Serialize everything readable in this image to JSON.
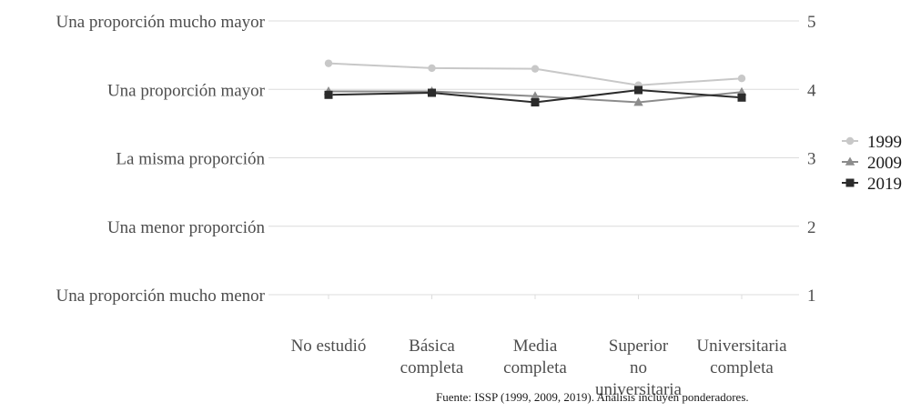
{
  "chart_data": {
    "type": "line",
    "title": "",
    "xlabel": "",
    "ylabel": "",
    "categories": [
      [
        "No estudió"
      ],
      [
        "Básica",
        "completa"
      ],
      [
        "Media",
        "completa"
      ],
      [
        "Superior",
        "no",
        "universitaria"
      ],
      [
        "Universitaria",
        "completa"
      ]
    ],
    "y_ticks": [
      1,
      2,
      3,
      4,
      5
    ],
    "y_tick_labels": [
      "Una proporción mucho menor",
      "Una menor proporción",
      "La misma proporción",
      "Una proporción mayor",
      "Una proporción mucho mayor"
    ],
    "ylim": [
      1,
      5
    ],
    "grid": true,
    "legend_position": "right",
    "series": [
      {
        "name": "1999",
        "color": "#c8c8c8",
        "marker": "circle",
        "values": [
          4.38,
          4.31,
          4.3,
          4.06,
          4.16
        ]
      },
      {
        "name": "2009",
        "color": "#8c8c8c",
        "marker": "triangle",
        "values": [
          3.97,
          3.97,
          3.9,
          3.81,
          3.96
        ]
      },
      {
        "name": "2019",
        "color": "#2b2b2b",
        "marker": "square",
        "values": [
          3.92,
          3.95,
          3.81,
          3.99,
          3.88
        ]
      }
    ]
  },
  "caption": "Fuente: ISSP (1999, 2009, 2019). Análisis incluyen ponderadores."
}
